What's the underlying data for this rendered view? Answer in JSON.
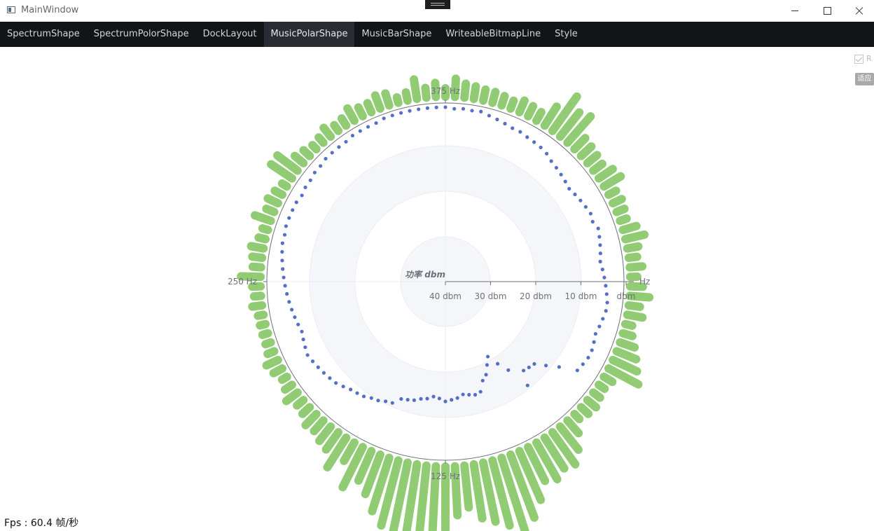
{
  "window": {
    "title": "MainWindow"
  },
  "tabs": [
    {
      "label": "SpectrumShape"
    },
    {
      "label": "SpectrumPolorShape"
    },
    {
      "label": "DockLayout"
    },
    {
      "label": "MusicPolarShape",
      "active": true
    },
    {
      "label": "MusicBarShape"
    },
    {
      "label": "WriteableBitmapLine"
    },
    {
      "label": "Style"
    }
  ],
  "controls": {
    "checkbox_label": "R",
    "checkbox_checked": true,
    "button_label": "适应"
  },
  "status": {
    "fps": "Fps : 60.4 帧/秒"
  },
  "chart_data": {
    "type": "polar-bar",
    "radius_axis_name": "功率 dbm",
    "radius_ticks": [
      "40 dbm",
      "30 dbm",
      "20 dbm",
      "10 dbm",
      "dbm"
    ],
    "angle_axis_unit": "Hz",
    "angle_labels": [
      "375 Hz",
      "250 Hz",
      "125 Hz"
    ],
    "series": [
      {
        "kind": "bars",
        "color": "#91cc75",
        "values": [
          12,
          26,
          20,
          18,
          16,
          16,
          14,
          12,
          18,
          16,
          14,
          32,
          60,
          44,
          50,
          22,
          20,
          18,
          16,
          24,
          28,
          12,
          14,
          12,
          10,
          20,
          28,
          16,
          12,
          18,
          10,
          18,
          28,
          16,
          22,
          10,
          14,
          22,
          30,
          38,
          48,
          14,
          10,
          12,
          16,
          14,
          10,
          24,
          42,
          56,
          52,
          60,
          54,
          76,
          96,
          110,
          96,
          86,
          78,
          60,
          70,
          90,
          104,
          108,
          116,
          118,
          96,
          80,
          60,
          46,
          64,
          30,
          50,
          30,
          26,
          20,
          22,
          14,
          12,
          20,
          12,
          8,
          14,
          18,
          10,
          8,
          8,
          8,
          8,
          14,
          10,
          12,
          28,
          12,
          14,
          18,
          10,
          8,
          24,
          12,
          16,
          12,
          8,
          36,
          36,
          16,
          12,
          8,
          10,
          16,
          10,
          12,
          20,
          14,
          14,
          20,
          18,
          8,
          12,
          28,
          14,
          20
        ]
      },
      {
        "kind": "dots",
        "color": "#5470c6",
        "values": [
          2,
          4,
          3,
          4,
          3,
          6,
          8,
          10,
          12,
          12,
          14,
          15,
          16,
          18,
          22,
          24,
          26,
          28,
          30,
          28,
          26,
          24,
          22,
          24,
          20,
          22,
          24,
          26,
          28,
          26,
          24,
          22,
          20,
          18,
          18,
          20,
          22,
          24,
          22,
          20,
          20,
          22,
          24,
          48,
          64,
          78,
          80,
          82,
          62,
          96,
          112,
          128,
          118,
          106,
          100,
          86,
          84,
          86,
          88,
          84,
          82,
          80,
          84,
          86,
          82,
          80,
          76,
          74,
          72,
          62,
          60,
          56,
          54,
          50,
          48,
          46,
          42,
          38,
          36,
          34,
          32,
          30,
          28,
          30,
          32,
          34,
          32,
          30,
          28,
          26,
          24,
          22,
          20,
          18,
          16,
          14,
          12,
          12,
          10,
          10,
          10,
          10,
          12,
          10,
          10,
          8,
          8,
          6,
          6,
          6,
          6,
          4,
          4,
          4,
          4,
          2,
          2,
          2,
          2,
          2,
          2,
          2
        ]
      }
    ]
  }
}
